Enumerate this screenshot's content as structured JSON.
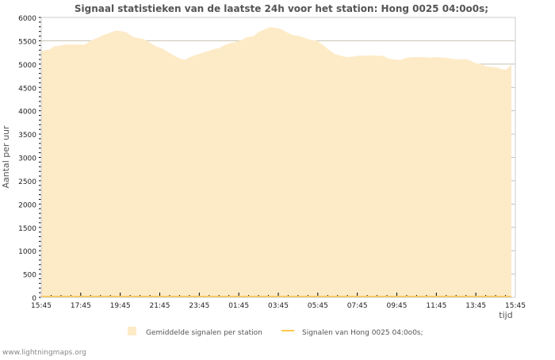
{
  "chart_data": {
    "type": "area",
    "title": "Signaal statistieken van de laatste 24h voor het station: Hong 0025 04:0o0s;",
    "xlabel": "tijd",
    "ylabel": "Aantal per uur",
    "ylim": [
      0,
      6000
    ],
    "xlim_hours": [
      0,
      24
    ],
    "yticks": [
      "0",
      "500",
      "1000",
      "1500",
      "2000",
      "2500",
      "3000",
      "3500",
      "4000",
      "4500",
      "5000",
      "5500",
      "6000"
    ],
    "xticks": [
      "15:45",
      "17:45",
      "19:45",
      "21:45",
      "23:45",
      "01:45",
      "03:45",
      "05:45",
      "07:45",
      "09:45",
      "11:45",
      "13:45",
      "15:45"
    ],
    "grid": true,
    "legend_placement": "bottom",
    "series": [
      {
        "name": "Gemiddelde signalen per station",
        "color": "#fdebc8",
        "type": "area",
        "hours": [
          0,
          0.2,
          0.4,
          0.64,
          0.92,
          1.2,
          1.52,
          1.93,
          2.21,
          2.41,
          2.65,
          2.93,
          3.13,
          3.41,
          3.65,
          3.81,
          4.13,
          4.33,
          4.65,
          4.94,
          5.22,
          5.54,
          5.82,
          6.14,
          6.46,
          6.74,
          7.02,
          7.26,
          7.54,
          7.83,
          8.15,
          8.43,
          8.75,
          9.03,
          9.35,
          9.55,
          9.87,
          10.15,
          10.43,
          10.76,
          10.96,
          11.28,
          11.56,
          11.84,
          12.16,
          12.44,
          12.76,
          13.08,
          13.36,
          13.64,
          13.97,
          14.29,
          14.57,
          14.85,
          15.17,
          15.45,
          15.77,
          16.05,
          16.37,
          16.65,
          16.97,
          17.26,
          17.58,
          17.86,
          18.18,
          18.46,
          18.78,
          19.06,
          19.38,
          19.66,
          19.98,
          20.27,
          20.59,
          20.87,
          21.19,
          21.47,
          21.71,
          21.99,
          22.27,
          22.51,
          22.79,
          23.07,
          23.31,
          23.51,
          23.8
        ],
        "values": [
          5280,
          5300,
          5310,
          5380,
          5390,
          5420,
          5420,
          5420,
          5420,
          5480,
          5530,
          5580,
          5620,
          5660,
          5700,
          5720,
          5700,
          5680,
          5580,
          5560,
          5530,
          5450,
          5380,
          5330,
          5250,
          5180,
          5120,
          5090,
          5150,
          5200,
          5240,
          5280,
          5320,
          5350,
          5420,
          5450,
          5480,
          5520,
          5580,
          5600,
          5680,
          5740,
          5790,
          5780,
          5750,
          5680,
          5620,
          5600,
          5560,
          5520,
          5500,
          5400,
          5300,
          5220,
          5180,
          5150,
          5160,
          5180,
          5180,
          5190,
          5180,
          5180,
          5120,
          5100,
          5090,
          5130,
          5150,
          5150,
          5150,
          5140,
          5150,
          5140,
          5130,
          5110,
          5100,
          5110,
          5080,
          5020,
          5000,
          4950,
          4940,
          4930,
          4890,
          4880,
          4980
        ]
      },
      {
        "name": "Signalen van Hong 0025 04:0o0s;",
        "color": "#ffc84a",
        "type": "line",
        "constant_value": 0
      }
    ]
  },
  "footer": {
    "credit": "www.lightningmaps.org"
  }
}
